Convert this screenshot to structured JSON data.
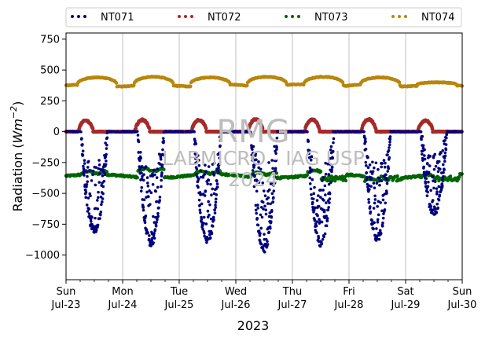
{
  "chart_data": {
    "type": "scatter",
    "title": "",
    "xlabel": "2023",
    "ylabel": "Radiation (Wm⁻²)",
    "ylim": [
      -1200,
      800
    ],
    "yticks": [
      750,
      500,
      250,
      0,
      -250,
      -500,
      -750,
      -1000
    ],
    "ytick_labels": [
      "750",
      "500",
      "250",
      "0",
      "−250",
      "−500",
      "−750",
      "−1000"
    ],
    "xlim_days": [
      0,
      7
    ],
    "xticks": [
      {
        "day": 0,
        "weekday": "Sun",
        "date": "Jul-23"
      },
      {
        "day": 1,
        "weekday": "Mon",
        "date": "Jul-24"
      },
      {
        "day": 2,
        "weekday": "Tue",
        "date": "Jul-25"
      },
      {
        "day": 3,
        "weekday": "Wed",
        "date": "Jul-26"
      },
      {
        "day": 4,
        "weekday": "Thu",
        "date": "Jul-27"
      },
      {
        "day": 5,
        "weekday": "Fri",
        "date": "Jul-28"
      },
      {
        "day": 6,
        "weekday": "Sat",
        "date": "Jul-29"
      },
      {
        "day": 7,
        "weekday": "Sun",
        "date": "Jul-30"
      }
    ],
    "grid": "vertical",
    "legend_position": "top, above plot",
    "series": [
      {
        "name": "NT071",
        "color": "#00007f",
        "description": "daytime negative, night ~0",
        "daily_min": [
          -800,
          -900,
          -880,
          -950,
          -900,
          -860,
          -650
        ]
      },
      {
        "name": "NT072",
        "color": "#a52a2a",
        "description": "night 0, daytime bump up to ~90",
        "daily_peak": [
          90,
          95,
          95,
          100,
          100,
          100,
          90
        ]
      },
      {
        "name": "NT073",
        "color": "#006400",
        "description": "around -350 to -400",
        "daily_level": [
          -330,
          -310,
          -330,
          -340,
          -320,
          -390,
          -360
        ]
      },
      {
        "name": "NT074",
        "color": "#b8860b",
        "description": "around 380 night, ~440 daytime",
        "daily_peak": [
          440,
          445,
          440,
          445,
          445,
          440,
          400
        ]
      }
    ]
  },
  "watermark": {
    "line1": "RMG",
    "line2": "LABMICRO - IAG USP",
    "line3": "2024"
  }
}
